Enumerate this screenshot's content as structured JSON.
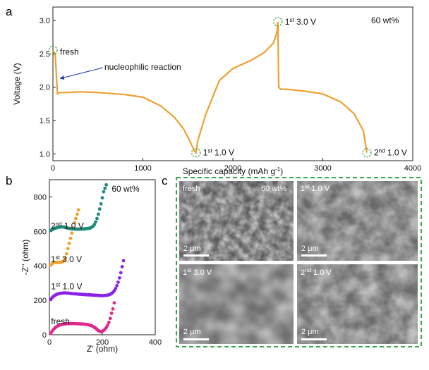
{
  "figure": {
    "panel_a_label": "a",
    "panel_b_label": "b",
    "panel_c_label": "c",
    "loading_label": "60 wt%"
  },
  "chart_data": [
    {
      "type": "line",
      "panel": "a",
      "xlabel": "Specific capacity (mAh g",
      "xlabel_sup": "-1",
      "xlabel_end": ")",
      "ylabel": "Voltage (V)",
      "xlim": [
        0,
        4000
      ],
      "ylim": [
        0.9,
        3.2
      ],
      "x_ticks": [
        0,
        1000,
        2000,
        3000,
        4000
      ],
      "y_ticks": [
        1.0,
        1.5,
        2.0,
        2.5,
        3.0
      ],
      "y_tick_labels": [
        "1.0",
        "1.5",
        "2.0",
        "2.5",
        "3.0"
      ],
      "annotation_loading": "60 wt%",
      "series_color": "#f0a030",
      "series": [
        {
          "x": [
            0,
            25,
            50,
            80,
            150,
            300,
            500,
            800,
            1000,
            1200,
            1350,
            1450,
            1520,
            1570,
            1590,
            1610,
            1700,
            1850,
            2000,
            2200,
            2350,
            2450,
            2490,
            2500,
            2510,
            2530,
            2600,
            2800,
            3000,
            3200,
            3350,
            3450,
            3490
          ],
          "y": [
            2.55,
            2.5,
            1.9,
            1.92,
            1.92,
            1.93,
            1.92,
            1.89,
            1.85,
            1.72,
            1.55,
            1.38,
            1.2,
            1.05,
            1.02,
            1.2,
            1.6,
            2.1,
            2.28,
            2.4,
            2.52,
            2.66,
            2.82,
            2.98,
            2.0,
            1.97,
            1.97,
            1.94,
            1.9,
            1.78,
            1.6,
            1.35,
            1.02
          ]
        }
      ],
      "markers": [
        {
          "x": 0,
          "y": 2.55,
          "label": "fresh",
          "sup": "",
          "label_end": ""
        },
        {
          "x": 1590,
          "y": 1.02,
          "label": "1",
          "sup": "st",
          "label_end": " 1.0 V"
        },
        {
          "x": 2500,
          "y": 2.98,
          "label": "1",
          "sup": "st",
          "label_end": " 3.0 V"
        },
        {
          "x": 3490,
          "y": 1.02,
          "label": "2",
          "sup": "nd",
          "label_end": " 1.0 V"
        }
      ],
      "arrow_annotation": {
        "text": "nucleophilic reaction",
        "x": 50,
        "y": 2.13
      }
    },
    {
      "type": "scatter",
      "panel": "b",
      "xlabel": "Z' (ohm)",
      "ylabel": "-Z'' (ohm)",
      "xlim": [
        0,
        400
      ],
      "ylim": [
        0,
        900
      ],
      "x_ticks": [
        0,
        200,
        400
      ],
      "y_ticks": [
        0,
        200,
        400,
        600,
        800
      ],
      "annotation_loading": "60 wt%",
      "series": [
        {
          "label": "fresh",
          "sup": "",
          "label_end": "",
          "color": "#e0288a",
          "x": [
            5,
            10,
            15,
            20,
            25,
            30,
            35,
            40,
            45,
            50,
            55,
            60,
            65,
            70,
            75,
            80,
            85,
            90,
            95,
            100,
            105,
            110,
            115,
            120,
            125,
            130,
            135,
            140,
            145,
            150,
            155,
            160,
            165,
            170,
            175,
            180,
            185,
            190,
            195,
            200,
            205,
            210,
            215,
            220,
            225,
            230,
            235,
            240,
            245
          ],
          "y": [
            8,
            20,
            30,
            38,
            45,
            50,
            54,
            57,
            59,
            61,
            62,
            63,
            64,
            64,
            65,
            65,
            65,
            65,
            65,
            64,
            64,
            64,
            63,
            63,
            62,
            62,
            61,
            60,
            59,
            57,
            55,
            52,
            48,
            43,
            38,
            31,
            25,
            20,
            18,
            20,
            25,
            32,
            42,
            55,
            72,
            95,
            125,
            150,
            185
          ]
        },
        {
          "label": "1",
          "sup": "st",
          "label_end": " 1.0 V",
          "color": "#8a22e8",
          "x": [
            5,
            10,
            15,
            20,
            25,
            30,
            35,
            40,
            45,
            50,
            55,
            60,
            65,
            70,
            75,
            80,
            85,
            90,
            95,
            100,
            105,
            110,
            115,
            120,
            125,
            130,
            135,
            140,
            145,
            150,
            155,
            160,
            165,
            170,
            175,
            180,
            185,
            190,
            195,
            200,
            205,
            210,
            215,
            220,
            225,
            230,
            235,
            240,
            245,
            250,
            255,
            260,
            265,
            270,
            275,
            280
          ],
          "y": [
            205,
            215,
            222,
            228,
            232,
            236,
            238,
            240,
            241,
            242,
            243,
            243,
            242,
            242,
            241,
            240,
            239,
            238,
            238,
            237,
            237,
            236,
            235,
            235,
            234,
            234,
            233,
            233,
            232,
            232,
            231,
            231,
            230,
            230,
            229,
            229,
            228,
            228,
            227,
            227,
            227,
            228,
            229,
            230,
            232,
            235,
            240,
            246,
            255,
            268,
            285,
            305,
            330,
            360,
            395,
            430
          ]
        },
        {
          "label": "1",
          "sup": "st",
          "label_end": " 3.0 V",
          "color": "#f0a030",
          "x": [
            5,
            10,
            15,
            20,
            25,
            30,
            35,
            40,
            45,
            50,
            55,
            60,
            65,
            70,
            75,
            80,
            85,
            90,
            95,
            100,
            105,
            110
          ],
          "y": [
            405,
            412,
            418,
            420,
            421,
            420,
            420,
            420,
            421,
            424,
            430,
            445,
            470,
            500,
            530,
            560,
            590,
            620,
            650,
            675,
            700,
            725
          ]
        },
        {
          "label": "2",
          "sup": "nd",
          "label_end": " 1.0 V",
          "color": "#1a8a7a",
          "x": [
            5,
            10,
            15,
            20,
            25,
            30,
            35,
            40,
            45,
            50,
            55,
            60,
            65,
            70,
            75,
            80,
            85,
            90,
            95,
            100,
            105,
            110,
            115,
            120,
            125,
            130,
            135,
            140,
            145,
            150,
            155,
            160,
            165,
            170,
            175,
            180,
            185,
            190,
            195,
            200,
            205,
            210,
            215
          ],
          "y": [
            605,
            610,
            614,
            618,
            620,
            622,
            624,
            625,
            626,
            626,
            625,
            623,
            621,
            619,
            617,
            616,
            615,
            614,
            614,
            613,
            613,
            613,
            613,
            613,
            614,
            614,
            615,
            616,
            617,
            618,
            620,
            624,
            630,
            640,
            655,
            675,
            700,
            730,
            760,
            795,
            830,
            850,
            870
          ]
        }
      ]
    }
  ],
  "sem_images": [
    {
      "label": "fresh",
      "sup": "",
      "label_end": "",
      "corner": "60 wt%",
      "scale": "2 μm"
    },
    {
      "label": "1",
      "sup": "st",
      "label_end": " 1.0 V",
      "corner": "",
      "scale": "2 μm"
    },
    {
      "label": "1",
      "sup": "st",
      "label_end": " 3.0 V",
      "corner": "",
      "scale": "2 μm"
    },
    {
      "label": "2",
      "sup": "nd",
      "label_end": " 1.0 V",
      "corner": "",
      "scale": "2 μm"
    }
  ],
  "colors": {
    "frame": "#3aa84a",
    "marker_ring": "#2e9a3a",
    "arrow": "#1f3aa0"
  }
}
